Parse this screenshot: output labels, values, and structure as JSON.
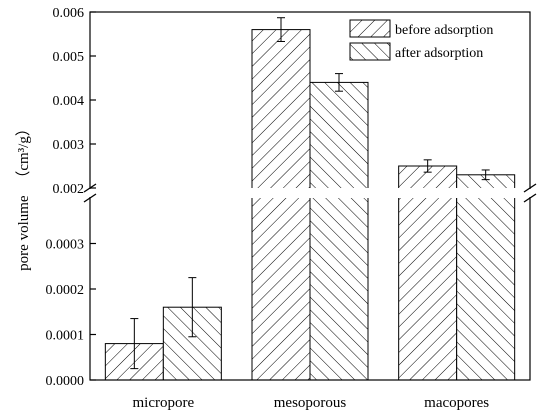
{
  "chart_data": {
    "type": "bar",
    "ylabel": "pore volume",
    "ylabel_unit": "（cm³/g）",
    "categories": [
      "micropore",
      "mesoporous",
      "macopores"
    ],
    "axis_break": true,
    "lower_ylim": [
      0,
      0.0004
    ],
    "upper_ylim": [
      0.002,
      0.006
    ],
    "lower_ticks": [
      "0.0000",
      "0.0001",
      "0.0002",
      "0.0003"
    ],
    "upper_ticks": [
      "0.002",
      "0.003",
      "0.004",
      "0.005",
      "0.006"
    ],
    "lower_tick_values": [
      0,
      0.0001,
      0.0002,
      0.0003
    ],
    "upper_tick_values": [
      0.002,
      0.003,
      0.004,
      0.005,
      0.006
    ],
    "series": [
      {
        "name": "before adsorption",
        "pattern": "hatch-forward",
        "values": [
          8e-05,
          0.0056,
          0.0025
        ],
        "errors": [
          5.5e-05,
          0.00027,
          0.00014
        ]
      },
      {
        "name": "after adsorption",
        "pattern": "hatch-back",
        "values": [
          0.00016,
          0.0044,
          0.0023
        ],
        "errors": [
          6.5e-05,
          0.0002,
          0.00011
        ]
      }
    ],
    "legend_position": "top-right",
    "grid": false
  }
}
